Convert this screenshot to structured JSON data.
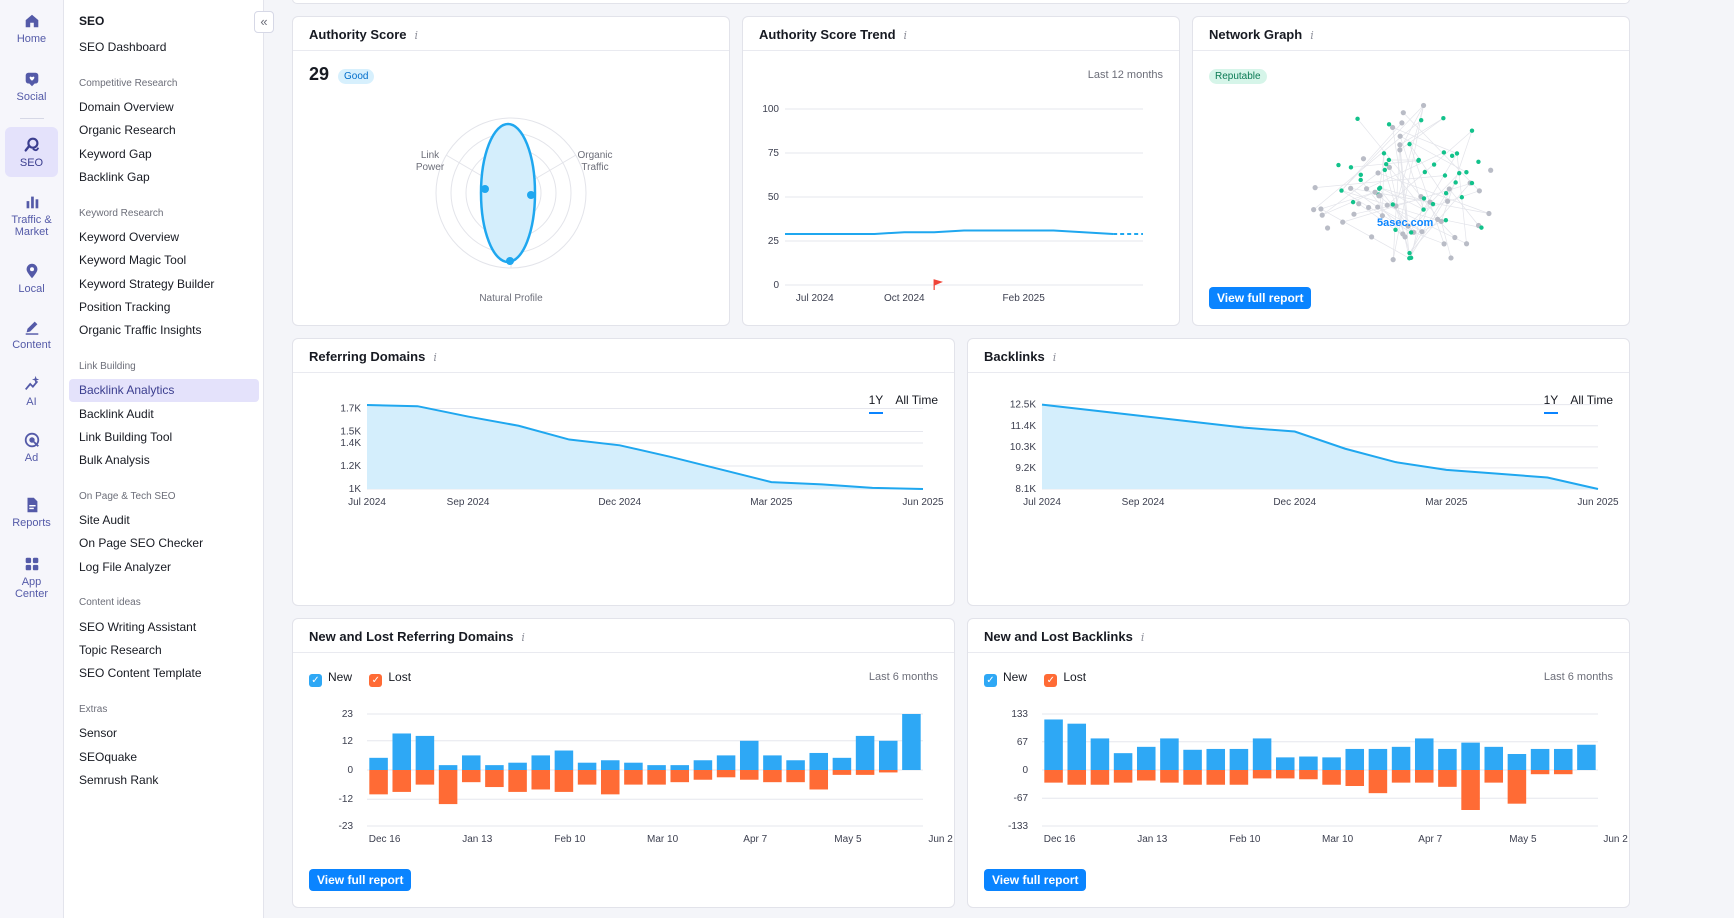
{
  "rail": {
    "items": [
      {
        "label": "Home",
        "icon": "home-icon"
      },
      {
        "label": "Social",
        "icon": "heart-chat-icon"
      },
      {
        "label": "SEO",
        "icon": "seo-icon"
      },
      {
        "label": "Traffic &",
        "label2": "Market",
        "icon": "bar-chart-icon"
      },
      {
        "label": "Local",
        "icon": "map-pin-icon"
      },
      {
        "label": "Content",
        "icon": "pen-icon"
      },
      {
        "label": "AI",
        "icon": "sparkle-chart-icon"
      },
      {
        "label": "Ad",
        "icon": "target-icon"
      },
      {
        "label": "Reports",
        "icon": "report-icon"
      },
      {
        "label": "App",
        "label2": "Center",
        "icon": "apps-icon"
      }
    ]
  },
  "nav": {
    "title": "SEO",
    "dashboard": "SEO Dashboard",
    "sections": [
      {
        "title": "Competitive Research",
        "items": [
          "Domain Overview",
          "Organic Research",
          "Keyword Gap",
          "Backlink Gap"
        ]
      },
      {
        "title": "Keyword Research",
        "items": [
          "Keyword Overview",
          "Keyword Magic Tool",
          "Keyword Strategy Builder",
          "Position Tracking",
          "Organic Traffic Insights"
        ]
      },
      {
        "title": "Link Building",
        "items": [
          "Backlink Analytics",
          "Backlink Audit",
          "Link Building Tool",
          "Bulk Analysis"
        ]
      },
      {
        "title": "On Page & Tech SEO",
        "items": [
          "Site Audit",
          "On Page SEO Checker",
          "Log File Analyzer"
        ]
      },
      {
        "title": "Content ideas",
        "items": [
          "SEO Writing Assistant",
          "Topic Research",
          "SEO Content Template"
        ]
      },
      {
        "title": "Extras",
        "items": [
          "Sensor",
          "SEOquake",
          "Semrush Rank"
        ]
      }
    ],
    "active": "Backlink Analytics",
    "collapse_glyph": "«"
  },
  "authority": {
    "title": "Authority Score",
    "info": "i",
    "score": "29",
    "badge": "Good",
    "radar_labels": [
      "Link",
      "Power",
      "Organic",
      "Traffic",
      "Natural Profile"
    ]
  },
  "trend": {
    "title": "Authority Score Trend",
    "info": "i",
    "period": "Last 12 months"
  },
  "network": {
    "title": "Network Graph",
    "info": "i",
    "badge": "Reputable",
    "domain": "5asec.com",
    "button": "View full report"
  },
  "referring": {
    "title": "Referring Domains",
    "info": "i",
    "tabs": [
      "1Y",
      "All Time"
    ]
  },
  "backlinks": {
    "title": "Backlinks",
    "info": "i",
    "tabs": [
      "1Y",
      "All Time"
    ]
  },
  "newlost_ref": {
    "title": "New and Lost Referring Domains",
    "info": "i",
    "legend_new": "New",
    "legend_lost": "Lost",
    "period": "Last 6 months",
    "button": "View full report"
  },
  "newlost_bl": {
    "title": "New and Lost Backlinks",
    "info": "i",
    "legend_new": "New",
    "legend_lost": "Lost",
    "period": "Last 6 months",
    "button": "View full report"
  },
  "colors": {
    "accent": "#0a84ff",
    "line": "#1fa7ef",
    "area": "#d4eefc",
    "new_bar": "#2ea8f5",
    "lost_bar": "#ff6b35",
    "network_green": "#12c28b",
    "network_gray": "#b9bcc6"
  },
  "chart_data": [
    {
      "id": "authority-trend",
      "type": "line",
      "title": "Authority Score Trend",
      "x": [
        "Jun 2024",
        "Jul 2024",
        "Aug 2024",
        "Sep 2024",
        "Oct 2024",
        "Nov 2024",
        "Dec 2024",
        "Jan 2025",
        "Feb 2025",
        "Mar 2025",
        "Apr 2025",
        "May 2025",
        "Jun 2025"
      ],
      "values": [
        29,
        29,
        29,
        29,
        30,
        30,
        31,
        31,
        31,
        31,
        30,
        29,
        29
      ],
      "tick_labels": [
        "Jul 2024",
        "Oct 2024",
        "Feb 2025"
      ],
      "y_ticks": [
        0,
        25,
        50,
        75,
        100
      ],
      "ylim": [
        0,
        100
      ],
      "marker_label_at": "Nov 2024"
    },
    {
      "id": "referring-domains",
      "type": "area",
      "title": "Referring Domains",
      "x": [
        "Jul 2024",
        "Aug 2024",
        "Sep 2024",
        "Oct 2024",
        "Nov 2024",
        "Dec 2024",
        "Jan 2025",
        "Feb 2025",
        "Mar 2025",
        "Apr 2025",
        "May 2025",
        "Jun 2025"
      ],
      "values": [
        1730,
        1720,
        1630,
        1550,
        1430,
        1380,
        1280,
        1170,
        1060,
        1040,
        1010,
        1000
      ],
      "tick_labels": [
        "Jul 2024",
        "Sep 2024",
        "Dec 2024",
        "Mar 2025",
        "Jun 2025"
      ],
      "y_ticks": [
        1000,
        1200,
        1400,
        1500,
        1700
      ],
      "y_tick_labels": [
        "1K",
        "1.2K",
        "1.4K",
        "1.5K",
        "1.7K"
      ],
      "ylim": [
        1000,
        1800
      ]
    },
    {
      "id": "backlinks",
      "type": "area",
      "title": "Backlinks",
      "x": [
        "Jul 2024",
        "Aug 2024",
        "Sep 2024",
        "Oct 2024",
        "Nov 2024",
        "Dec 2024",
        "Jan 2025",
        "Feb 2025",
        "Mar 2025",
        "Apr 2025",
        "May 2025",
        "Jun 2025"
      ],
      "values": [
        12500,
        12200,
        11900,
        11600,
        11300,
        11100,
        10200,
        9500,
        9100,
        8900,
        8700,
        8100
      ],
      "tick_labels": [
        "Jul 2024",
        "Sep 2024",
        "Dec 2024",
        "Mar 2025",
        "Jun 2025"
      ],
      "y_ticks": [
        8100,
        9200,
        10300,
        11400,
        12500
      ],
      "y_tick_labels": [
        "8.1K",
        "9.2K",
        "10.3K",
        "11.4K",
        "12.5K"
      ],
      "ylim": [
        8100,
        12900
      ]
    },
    {
      "id": "new-lost-referring",
      "type": "bar",
      "title": "New and Lost Referring Domains",
      "series": [
        {
          "name": "New",
          "values": [
            5,
            15,
            14,
            2,
            6,
            2,
            3,
            6,
            8,
            3,
            4,
            3,
            2,
            2,
            4,
            6,
            12,
            6,
            4,
            7,
            5,
            14,
            12,
            23
          ]
        },
        {
          "name": "Lost",
          "values": [
            -10,
            -9,
            -6,
            -14,
            -5,
            -7,
            -9,
            -8,
            -9,
            -6,
            -10,
            -6,
            -6,
            -5,
            -4,
            -3,
            -4,
            -5,
            -5,
            -8,
            -2,
            -2,
            -1,
            0
          ]
        }
      ],
      "tick_labels": [
        "Dec 16",
        "Jan 13",
        "Feb 10",
        "Mar 10",
        "Apr 7",
        "May 5",
        "Jun 2"
      ],
      "y_ticks": [
        -23,
        -12,
        0,
        12,
        23
      ],
      "ylim": [
        -23,
        23
      ]
    },
    {
      "id": "new-lost-backlinks",
      "type": "bar",
      "title": "New and Lost Backlinks",
      "series": [
        {
          "name": "New",
          "values": [
            120,
            110,
            75,
            40,
            55,
            75,
            48,
            50,
            50,
            75,
            30,
            32,
            30,
            50,
            50,
            55,
            75,
            50,
            65,
            55,
            38,
            50,
            50,
            60
          ]
        },
        {
          "name": "Lost",
          "values": [
            -30,
            -35,
            -35,
            -30,
            -25,
            -30,
            -35,
            -35,
            -35,
            -20,
            -20,
            -22,
            -35,
            -38,
            -55,
            -30,
            -30,
            -40,
            -95,
            -30,
            -80,
            -10,
            -10,
            0
          ]
        }
      ],
      "tick_labels": [
        "Dec 16",
        "Jan 13",
        "Feb 10",
        "Mar 10",
        "Apr 7",
        "May 5",
        "Jun 2"
      ],
      "y_ticks": [
        -133,
        -67,
        0,
        67,
        133
      ],
      "ylim": [
        -133,
        133
      ]
    }
  ]
}
